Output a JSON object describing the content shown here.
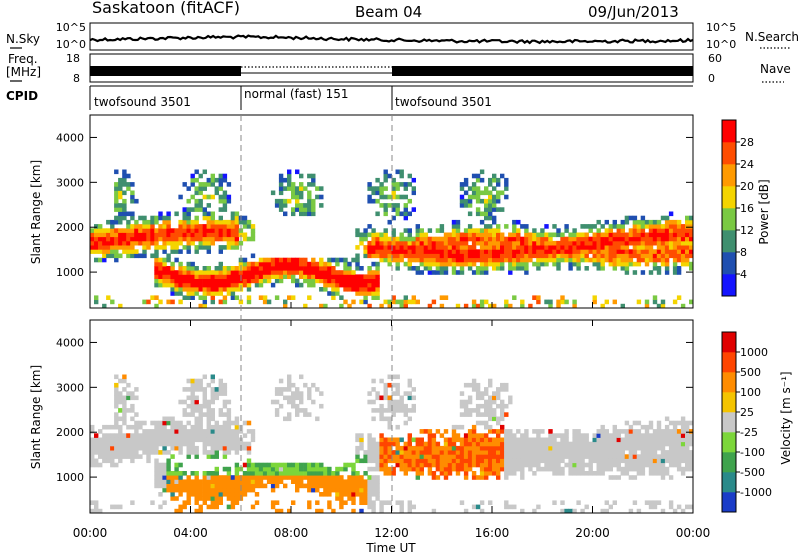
{
  "header": {
    "station": "Saskatoon (fitACF)",
    "beam": "Beam 04",
    "date": "09/Jun/2013"
  },
  "noise_panel": {
    "left_label": "N.Sky",
    "left_ticks": [
      "10^5",
      "10^0"
    ],
    "right_ticks": [
      "10^5",
      "10^0"
    ],
    "right_label": "N.Search"
  },
  "freq_panel": {
    "left_label_1": "Freq.",
    "left_label_2": "[MHz]",
    "left_ticks": [
      "18",
      "8"
    ],
    "right_ticks": [
      "60",
      "0"
    ],
    "right_label": "Nave"
  },
  "cpid": {
    "label": "CPID",
    "segments": [
      {
        "name": "twofsound 3501",
        "start_hour": 0,
        "end_hour": 6
      },
      {
        "name": "normal (fast) 151",
        "start_hour": 6,
        "end_hour": 12
      },
      {
        "name": "twofsound 3501",
        "start_hour": 12,
        "end_hour": 24
      }
    ]
  },
  "chart_data": [
    {
      "type": "heatmap",
      "name": "power",
      "ylabel": "Slant Range [km]",
      "yticks": [
        "1000",
        "2000",
        "3000",
        "4000"
      ],
      "ylim": [
        200,
        4500
      ],
      "xlim": [
        0,
        24
      ],
      "colorbar_label": "Power [dB]",
      "colorbar_ticks": [
        "4",
        "8",
        "12",
        "16",
        "20",
        "24",
        "28"
      ],
      "colors": [
        "#1414ff",
        "#1f4fb0",
        "#3f8f6f",
        "#7ac943",
        "#f4d400",
        "#ff9a00",
        "#ff4d00",
        "#ff0000"
      ]
    },
    {
      "type": "heatmap",
      "name": "velocity",
      "ylabel": "Slant Range [km]",
      "yticks": [
        "1000",
        "2000",
        "3000",
        "4000"
      ],
      "ylim": [
        200,
        4500
      ],
      "xlim": [
        0,
        24
      ],
      "colorbar_label": "Velocity [m s⁻¹]",
      "colorbar_ticks": [
        "1000",
        "500",
        "100",
        "25",
        "-25",
        "-100",
        "-500",
        "-1000"
      ],
      "colors": [
        "#1a3cc8",
        "#2a8a8a",
        "#3fa34d",
        "#7cd63a",
        "#c8c8c8",
        "#f4c400",
        "#ff8c00",
        "#ff4500",
        "#e00000"
      ]
    }
  ],
  "x_axis": {
    "ticks": [
      "00:00",
      "04:00",
      "08:00",
      "12:00",
      "16:00",
      "20:00",
      "00:00"
    ],
    "label": "Time UT"
  }
}
